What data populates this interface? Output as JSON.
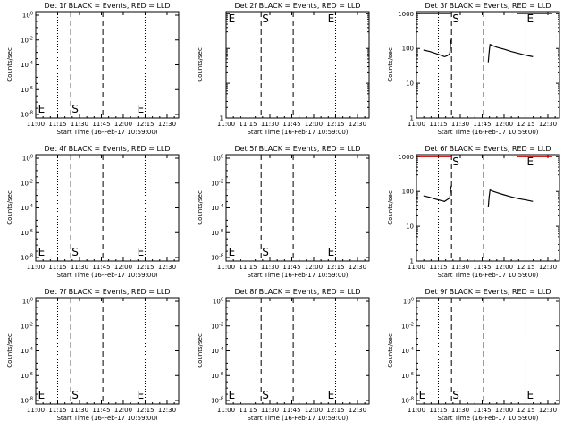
{
  "colors": {
    "background": "#ffffff",
    "foreground": "#000000",
    "lld": "#cc0000"
  },
  "chart_data": [
    {
      "type": "line",
      "title": "Det 1f BLACK = Events, RED = LLD",
      "xlabel": "Start Time (16-Feb-17 10:59:00)",
      "ylabel": "Counts/sec",
      "xticks": [
        "11:00",
        "11:15",
        "11:30",
        "11:45",
        "12:00",
        "12:15",
        "12:30"
      ],
      "ylog": false,
      "ytick_labels": [
        "10^-8",
        "10^-6",
        "10^-4",
        "10^-2",
        "10^0"
      ],
      "xlim": [
        "11:00",
        "12:38"
      ],
      "dotted_lines": [
        "11:15",
        "12:15"
      ],
      "dashed_lines": [
        "11:24",
        "11:46"
      ],
      "markers": [
        {
          "label": "E",
          "x": "11:01"
        },
        {
          "label": "S",
          "x": "11:24"
        },
        {
          "label": "E",
          "x": "12:09"
        }
      ],
      "series": []
    },
    {
      "type": "line",
      "title": "Det 2f BLACK = Events, RED = LLD",
      "xlabel": "Start Time (16-Feb-17 10:59:00)",
      "ylabel": "Counts/sec",
      "xticks": [
        "11:00",
        "11:15",
        "11:30",
        "11:45",
        "12:00",
        "12:15",
        "12:30"
      ],
      "ylog": true,
      "ytick_labels": [
        "1"
      ],
      "xlim": [
        "11:00",
        "12:38"
      ],
      "dotted_lines": [
        "11:15",
        "12:15"
      ],
      "dashed_lines": [
        "11:24",
        "11:46"
      ],
      "markers": [
        {
          "label": "E",
          "x": "11:01"
        },
        {
          "label": "S",
          "x": "11:24"
        },
        {
          "label": "E",
          "x": "12:09"
        }
      ],
      "series": []
    },
    {
      "type": "line",
      "title": "Det 3f BLACK = Events, RED = LLD",
      "xlabel": "Start Time (16-Feb-17 10:59:00)",
      "ylabel": "Counts/sec",
      "xticks": [
        "11:00",
        "11:15",
        "11:30",
        "11:45",
        "12:00",
        "12:15",
        "12:30"
      ],
      "ylog": true,
      "ytick_labels": [
        "1",
        "10",
        "100",
        "1000"
      ],
      "xlim": [
        "11:00",
        "12:38"
      ],
      "dotted_lines": [
        "11:15",
        "12:15"
      ],
      "dashed_lines": [
        "11:24",
        "11:46"
      ],
      "markers": [
        {
          "label": "S",
          "x": "11:24"
        },
        {
          "label": "E",
          "x": "12:15"
        }
      ],
      "series": [
        {
          "color": "#000000",
          "x": [
            11.08,
            11.15,
            11.22,
            11.28,
            11.32,
            11.35,
            11.38,
            11.385,
            11.39,
            11.4
          ],
          "y": [
            90,
            82,
            72,
            64,
            58,
            62,
            70,
            95,
            150,
            190
          ]
        },
        {
          "color": "#000000",
          "x": [
            11.82,
            11.83,
            11.84,
            11.87,
            11.92,
            12.0,
            12.08,
            12.17,
            12.25,
            12.33
          ],
          "y": [
            40,
            80,
            130,
            120,
            108,
            95,
            82,
            72,
            64,
            58
          ]
        },
        {
          "color": "#cc0000",
          "x": [
            11.02,
            11.4
          ],
          "y": [
            1000,
            1000
          ]
        },
        {
          "color": "#cc0000",
          "x": [
            12.15,
            12.55
          ],
          "y": [
            1000,
            1000
          ]
        }
      ]
    },
    {
      "type": "line",
      "title": "Det 4f BLACK = Events, RED = LLD",
      "xlabel": "Start Time (16-Feb-17 10:59:00)",
      "ylabel": "Counts/sec",
      "xticks": [
        "11:00",
        "11:15",
        "11:30",
        "11:45",
        "12:00",
        "12:15",
        "12:30"
      ],
      "ylog": false,
      "ytick_labels": [
        "10^-8",
        "10^-6",
        "10^-4",
        "10^-2",
        "10^0"
      ],
      "xlim": [
        "11:00",
        "12:38"
      ],
      "dotted_lines": [
        "11:15",
        "12:15"
      ],
      "dashed_lines": [
        "11:24",
        "11:46"
      ],
      "markers": [
        {
          "label": "E",
          "x": "11:01"
        },
        {
          "label": "S",
          "x": "11:24"
        },
        {
          "label": "E",
          "x": "12:09"
        }
      ],
      "series": []
    },
    {
      "type": "line",
      "title": "Det 5f BLACK = Events, RED = LLD",
      "xlabel": "Start Time (16-Feb-17 10:59:00)",
      "ylabel": "Counts/sec",
      "xticks": [
        "11:00",
        "11:15",
        "11:30",
        "11:45",
        "12:00",
        "12:15",
        "12:30"
      ],
      "ylog": false,
      "ytick_labels": [
        "10^-8",
        "10^-6",
        "10^-4",
        "10^-2",
        "10^0"
      ],
      "xlim": [
        "11:00",
        "12:38"
      ],
      "dotted_lines": [
        "11:15",
        "12:15"
      ],
      "dashed_lines": [
        "11:24",
        "11:46"
      ],
      "markers": [
        {
          "label": "E",
          "x": "11:01"
        },
        {
          "label": "S",
          "x": "11:24"
        },
        {
          "label": "E",
          "x": "12:09"
        }
      ],
      "series": []
    },
    {
      "type": "line",
      "title": "Det 6f BLACK = Events, RED = LLD",
      "xlabel": "Start Time (16-Feb-17 10:59:00)",
      "ylabel": "Counts/sec",
      "xticks": [
        "11:00",
        "11:15",
        "11:30",
        "11:45",
        "12:00",
        "12:15",
        "12:30"
      ],
      "ylog": true,
      "ytick_labels": [
        "1",
        "10",
        "100",
        "1000"
      ],
      "xlim": [
        "11:00",
        "12:38"
      ],
      "dotted_lines": [
        "11:15",
        "12:15"
      ],
      "dashed_lines": [
        "11:24",
        "11:46"
      ],
      "markers": [
        {
          "label": "S",
          "x": "11:24"
        },
        {
          "label": "E",
          "x": "12:15"
        }
      ],
      "series": [
        {
          "color": "#000000",
          "x": [
            11.08,
            11.15,
            11.22,
            11.28,
            11.32,
            11.35,
            11.38,
            11.385,
            11.39,
            11.4
          ],
          "y": [
            75,
            68,
            60,
            55,
            52,
            58,
            65,
            85,
            120,
            150
          ]
        },
        {
          "color": "#000000",
          "x": [
            11.82,
            11.83,
            11.84,
            11.87,
            11.92,
            12.0,
            12.08,
            12.17,
            12.25,
            12.33
          ],
          "y": [
            35,
            70,
            110,
            102,
            92,
            80,
            70,
            62,
            57,
            52
          ]
        },
        {
          "color": "#cc0000",
          "x": [
            11.02,
            11.4
          ],
          "y": [
            1000,
            1000
          ]
        },
        {
          "color": "#cc0000",
          "x": [
            12.15,
            12.55
          ],
          "y": [
            1000,
            1000
          ]
        }
      ]
    },
    {
      "type": "line",
      "title": "Det 7f BLACK = Events, RED = LLD",
      "xlabel": "Start Time (16-Feb-17 10:59:00)",
      "ylabel": "Counts/sec",
      "xticks": [
        "11:00",
        "11:15",
        "11:30",
        "11:45",
        "12:00",
        "12:15",
        "12:30"
      ],
      "ylog": false,
      "ytick_labels": [
        "10^-8",
        "10^-6",
        "10^-4",
        "10^-2",
        "10^0"
      ],
      "xlim": [
        "11:00",
        "12:38"
      ],
      "dotted_lines": [
        "11:15",
        "12:15"
      ],
      "dashed_lines": [
        "11:24",
        "11:46"
      ],
      "markers": [
        {
          "label": "E",
          "x": "11:01"
        },
        {
          "label": "S",
          "x": "11:24"
        },
        {
          "label": "E",
          "x": "12:09"
        }
      ],
      "series": []
    },
    {
      "type": "line",
      "title": "Det 8f BLACK = Events, RED = LLD",
      "xlabel": "Start Time (16-Feb-17 10:59:00)",
      "ylabel": "Counts/sec",
      "xticks": [
        "11:00",
        "11:15",
        "11:30",
        "11:45",
        "12:00",
        "12:15",
        "12:30"
      ],
      "ylog": false,
      "ytick_labels": [
        "10^-8",
        "10^-6",
        "10^-4",
        "10^-2",
        "10^0"
      ],
      "xlim": [
        "11:00",
        "12:38"
      ],
      "dotted_lines": [
        "11:15",
        "12:15"
      ],
      "dashed_lines": [
        "11:24",
        "11:46"
      ],
      "markers": [
        {
          "label": "E",
          "x": "11:01"
        },
        {
          "label": "S",
          "x": "11:24"
        },
        {
          "label": "E",
          "x": "12:09"
        }
      ],
      "series": []
    },
    {
      "type": "line",
      "title": "Det 9f BLACK = Events, RED = LLD",
      "xlabel": "Start Time (16-Feb-17 10:59:00)",
      "ylabel": "Counts/sec",
      "xticks": [
        "11:00",
        "11:15",
        "11:30",
        "11:45",
        "12:00",
        "12:15",
        "12:30"
      ],
      "ylog": false,
      "ytick_labels": [
        "10^-8",
        "10^-6",
        "10^-4",
        "10^-2",
        "10^0"
      ],
      "xlim": [
        "11:00",
        "12:38"
      ],
      "dotted_lines": [
        "11:15",
        "12:15"
      ],
      "dashed_lines": [
        "11:24",
        "11:46"
      ],
      "markers": [
        {
          "label": "E",
          "x": "11:01"
        },
        {
          "label": "S",
          "x": "11:24"
        },
        {
          "label": "E",
          "x": "12:15"
        }
      ],
      "series": []
    }
  ]
}
